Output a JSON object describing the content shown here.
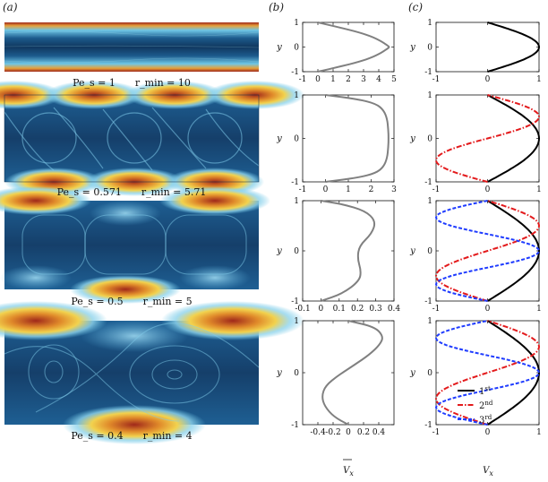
{
  "panel_labels": [
    "(a)",
    "(b)",
    "(c)"
  ],
  "captions": [
    {
      "pe": "Pe_s = 1",
      "r": "r_min = 10"
    },
    {
      "pe": "Pe_s = 0.571",
      "r": "r_min = 5.71"
    },
    {
      "pe": "Pe_s = 0.5",
      "r": "r_min = 5"
    },
    {
      "pe": "Pe_s = 0.4",
      "r": "r_min = 4"
    }
  ],
  "colors": {
    "gray": "#808080",
    "mode1": "#000000",
    "mode2": "#e31a1c",
    "mode3": "#1f3cff",
    "field_dark": "#10375e",
    "field_light": "#6ec6e6",
    "field_hot": "#a0281a"
  },
  "chart_data": [
    {
      "type": "line",
      "panel": "b",
      "row": 1,
      "xlabel": "",
      "ylabel": "y",
      "xlim": [
        -1,
        5
      ],
      "ylim": [
        -1,
        1
      ],
      "xticks": [
        -1,
        0,
        1,
        2,
        3,
        4,
        5
      ],
      "yticks": [
        -1,
        0,
        1
      ],
      "series": [
        {
          "name": "mean Vx",
          "style": "gray-solid",
          "x": [
            0,
            1.4,
            2.7,
            3.65,
            4.25,
            4.6,
            4.7,
            4.6,
            4.25,
            3.65,
            2.7,
            1.4,
            0
          ],
          "y": [
            -1,
            -0.8,
            -0.6,
            -0.4,
            -0.2,
            -0.05,
            0,
            0.05,
            0.2,
            0.4,
            0.6,
            0.8,
            1
          ]
        }
      ]
    },
    {
      "type": "line",
      "panel": "b",
      "row": 2,
      "xlabel": "",
      "ylabel": "y",
      "xlim": [
        -1,
        3
      ],
      "ylim": [
        -1,
        1
      ],
      "xticks": [
        -1,
        0,
        1,
        2,
        3
      ],
      "yticks": [
        -1,
        0,
        1
      ],
      "series": [
        {
          "name": "mean Vx",
          "style": "gray-solid",
          "x": [
            0,
            1.45,
            2.2,
            2.55,
            2.7,
            2.75,
            2.76,
            2.75,
            2.7,
            2.55,
            2.2,
            1.45,
            0
          ],
          "y": [
            -1,
            -0.9,
            -0.8,
            -0.65,
            -0.45,
            -0.2,
            0,
            0.2,
            0.45,
            0.65,
            0.8,
            0.9,
            1
          ]
        }
      ]
    },
    {
      "type": "line",
      "panel": "b",
      "row": 3,
      "xlabel": "",
      "ylabel": "y",
      "xlim": [
        -0.1,
        0.4
      ],
      "ylim": [
        -1,
        1
      ],
      "xticks": [
        -0.1,
        0,
        0.1,
        0.2,
        0.3,
        0.4
      ],
      "yticks": [
        -1,
        0,
        1
      ],
      "series": [
        {
          "name": "mean Vx",
          "style": "gray-solid",
          "x": [
            0,
            0.12,
            0.21,
            0.22,
            0.2,
            0.21,
            0.28,
            0.3,
            0.24,
            0.12,
            0
          ],
          "y": [
            -1,
            -0.85,
            -0.6,
            -0.4,
            -0.15,
            0.1,
            0.35,
            0.6,
            0.8,
            0.93,
            1
          ]
        }
      ]
    },
    {
      "type": "line",
      "panel": "b",
      "row": 4,
      "xlabel": "mean V_x",
      "ylabel": "y",
      "xlim": [
        -0.6,
        0.6
      ],
      "ylim": [
        -1,
        1
      ],
      "xticks": [
        -0.4,
        -0.2,
        0,
        0.2,
        0.4
      ],
      "yticks": [
        -1,
        0,
        1
      ],
      "series": [
        {
          "name": "mean Vx",
          "style": "gray-solid",
          "x": [
            0,
            -0.19,
            -0.31,
            -0.35,
            -0.3,
            -0.13,
            0.08,
            0.28,
            0.42,
            0.46,
            0.35,
            0
          ],
          "y": [
            -1,
            -0.85,
            -0.65,
            -0.45,
            -0.25,
            -0.05,
            0.15,
            0.35,
            0.55,
            0.7,
            0.88,
            1
          ]
        }
      ]
    },
    {
      "type": "line",
      "panel": "c",
      "row": 1,
      "xlabel": "",
      "ylabel": "y",
      "xlim": [
        -1,
        1
      ],
      "ylim": [
        -1,
        1
      ],
      "xticks": [
        -1,
        0,
        1
      ],
      "yticks": [
        -1,
        0,
        1
      ],
      "series": [
        {
          "name": "1st",
          "mode": 1
        }
      ]
    },
    {
      "type": "line",
      "panel": "c",
      "row": 2,
      "xlabel": "",
      "ylabel": "y",
      "xlim": [
        -1,
        1
      ],
      "ylim": [
        -1,
        1
      ],
      "xticks": [
        -1,
        0,
        1
      ],
      "yticks": [
        -1,
        0,
        1
      ],
      "series": [
        {
          "name": "1st",
          "mode": 1
        },
        {
          "name": "2nd",
          "mode": 2
        }
      ]
    },
    {
      "type": "line",
      "panel": "c",
      "row": 3,
      "xlabel": "",
      "ylabel": "y",
      "xlim": [
        -1,
        1
      ],
      "ylim": [
        -1,
        1
      ],
      "xticks": [
        -1,
        0,
        1
      ],
      "yticks": [
        -1,
        0,
        1
      ],
      "series": [
        {
          "name": "1st",
          "mode": 1
        },
        {
          "name": "2nd",
          "mode": 2
        },
        {
          "name": "3rd",
          "mode": 3
        }
      ]
    },
    {
      "type": "line",
      "panel": "c",
      "row": 4,
      "xlabel": "V_x",
      "ylabel": "y",
      "xlim": [
        -1,
        1
      ],
      "ylim": [
        -1,
        1
      ],
      "xticks": [
        -1,
        0,
        1
      ],
      "yticks": [
        -1,
        0,
        1
      ],
      "series": [
        {
          "name": "1st",
          "mode": 1
        },
        {
          "name": "2nd",
          "mode": 2
        },
        {
          "name": "3rd",
          "mode": 3
        }
      ]
    }
  ],
  "legend": [
    {
      "base": "1",
      "sup": "st"
    },
    {
      "base": "2",
      "sup": "nd"
    },
    {
      "base": "3",
      "sup": "rd"
    }
  ],
  "axis_labels": {
    "y": "y",
    "b_x": "V",
    "b_x_sub": "x",
    "c_x": "V",
    "c_x_sub": "x"
  }
}
